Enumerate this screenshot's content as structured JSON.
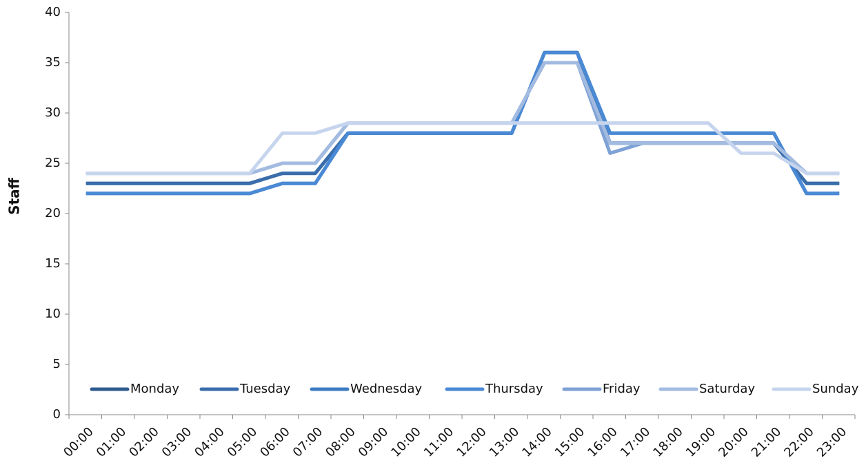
{
  "chart_data": {
    "type": "line",
    "y_label": "Staff",
    "categories": [
      "00:00",
      "01:00",
      "02:00",
      "03:00",
      "04:00",
      "05:00",
      "06:00",
      "07:00",
      "08:00",
      "09:00",
      "10:00",
      "11:00",
      "12:00",
      "13:00",
      "14:00",
      "15:00",
      "16:00",
      "17:00",
      "18:00",
      "19:00",
      "20:00",
      "21:00",
      "22:00",
      "23:00"
    ],
    "ylim": [
      0,
      40
    ],
    "yticks": [
      0,
      5,
      10,
      15,
      20,
      25,
      30,
      35,
      40
    ],
    "grid": false,
    "legend": "bottom",
    "series": [
      {
        "name": "Monday",
        "color": "#2f5b8e",
        "values": [
          23,
          23,
          23,
          23,
          23,
          23,
          24,
          24,
          28,
          28,
          28,
          28,
          28,
          28,
          36,
          36,
          27,
          27,
          27,
          27,
          27,
          27,
          23,
          23
        ]
      },
      {
        "name": "Tuesday",
        "color": "#3a6dab",
        "values": [
          23,
          23,
          23,
          23,
          23,
          23,
          24,
          24,
          28,
          28,
          28,
          28,
          28,
          28,
          36,
          36,
          27,
          27,
          27,
          27,
          27,
          27,
          23,
          23
        ]
      },
      {
        "name": "Wednesday",
        "color": "#3c7bc2",
        "values": [
          22,
          22,
          22,
          22,
          22,
          22,
          23,
          23,
          28,
          28,
          28,
          28,
          28,
          28,
          36,
          36,
          28,
          28,
          28,
          28,
          28,
          28,
          22,
          22
        ]
      },
      {
        "name": "Thursday",
        "color": "#4a89d4",
        "values": [
          22,
          22,
          22,
          22,
          22,
          22,
          23,
          23,
          28,
          28,
          28,
          28,
          28,
          28,
          36,
          36,
          28,
          28,
          28,
          28,
          28,
          28,
          22,
          22
        ]
      },
      {
        "name": "Friday",
        "color": "#7fa2d6",
        "values": [
          24,
          24,
          24,
          24,
          24,
          24,
          25,
          25,
          29,
          29,
          29,
          29,
          29,
          29,
          35,
          35,
          26,
          27,
          27,
          27,
          27,
          27,
          24,
          24
        ]
      },
      {
        "name": "Saturday",
        "color": "#a3bbe0",
        "values": [
          24,
          24,
          24,
          24,
          24,
          24,
          25,
          25,
          29,
          29,
          29,
          29,
          29,
          29,
          35,
          35,
          27,
          27,
          27,
          27,
          27,
          27,
          24,
          24
        ]
      },
      {
        "name": "Sunday",
        "color": "#c6d5ed",
        "values": [
          24,
          24,
          24,
          24,
          24,
          24,
          28,
          28,
          29,
          29,
          29,
          29,
          29,
          29,
          29,
          29,
          29,
          29,
          29,
          29,
          26,
          26,
          24,
          24
        ]
      }
    ]
  }
}
